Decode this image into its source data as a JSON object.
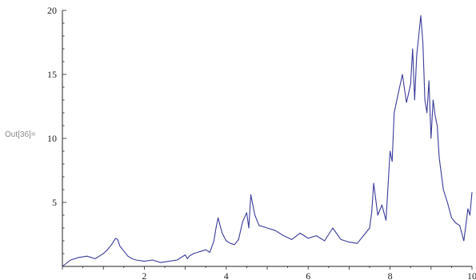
{
  "cell_label": "Out[36]=",
  "chart_data": {
    "type": "line",
    "title": "",
    "xlabel": "",
    "ylabel": "",
    "xlim": [
      0,
      10
    ],
    "ylim": [
      0,
      20
    ],
    "x_ticks": [
      2,
      4,
      6,
      8,
      10
    ],
    "y_ticks": [
      5,
      10,
      15,
      20
    ],
    "grid": false,
    "series": [
      {
        "color": "#3b3b9c",
        "x": [
          0.0,
          0.2,
          0.4,
          0.6,
          0.8,
          1.0,
          1.1,
          1.2,
          1.3,
          1.35,
          1.4,
          1.5,
          1.6,
          1.7,
          1.8,
          2.0,
          2.2,
          2.4,
          2.6,
          2.8,
          3.0,
          3.05,
          3.1,
          3.2,
          3.3,
          3.4,
          3.5,
          3.6,
          3.7,
          3.75,
          3.8,
          3.85,
          3.9,
          4.0,
          4.1,
          4.2,
          4.3,
          4.4,
          4.5,
          4.55,
          4.6,
          4.7,
          4.8,
          5.0,
          5.2,
          5.4,
          5.6,
          5.8,
          6.0,
          6.2,
          6.4,
          6.6,
          6.8,
          7.0,
          7.2,
          7.4,
          7.5,
          7.55,
          7.6,
          7.7,
          7.8,
          7.9,
          8.0,
          8.05,
          8.1,
          8.2,
          8.3,
          8.4,
          8.5,
          8.55,
          8.6,
          8.65,
          8.7,
          8.75,
          8.8,
          8.85,
          8.9,
          8.95,
          9.0,
          9.05,
          9.1,
          9.15,
          9.2,
          9.3,
          9.4,
          9.5,
          9.6,
          9.7,
          9.75,
          9.8,
          9.85,
          9.9,
          9.95,
          10.0
        ],
        "values": [
          0.0,
          0.5,
          0.7,
          0.8,
          0.6,
          1.0,
          1.3,
          1.7,
          2.2,
          2.1,
          1.6,
          1.2,
          0.8,
          0.6,
          0.5,
          0.4,
          0.5,
          0.3,
          0.4,
          0.5,
          0.9,
          0.6,
          0.8,
          1.0,
          1.1,
          1.2,
          1.3,
          1.1,
          2.0,
          3.0,
          3.8,
          3.2,
          2.6,
          2.0,
          1.8,
          1.7,
          2.1,
          3.5,
          4.2,
          3.0,
          5.6,
          4.0,
          3.2,
          3.0,
          2.8,
          2.4,
          2.1,
          2.6,
          2.2,
          2.4,
          2.0,
          3.0,
          2.1,
          1.9,
          1.8,
          2.6,
          3.0,
          4.2,
          6.5,
          4.0,
          4.8,
          3.6,
          9.0,
          8.2,
          12.0,
          13.5,
          15.0,
          12.8,
          14.2,
          17.0,
          13.0,
          16.5,
          18.0,
          19.6,
          17.5,
          13.0,
          12.0,
          14.5,
          10.0,
          13.0,
          11.8,
          11.0,
          8.5,
          6.0,
          5.0,
          3.8,
          3.4,
          3.2,
          2.6,
          2.0,
          3.2,
          4.5,
          4.0,
          5.8
        ]
      }
    ]
  }
}
